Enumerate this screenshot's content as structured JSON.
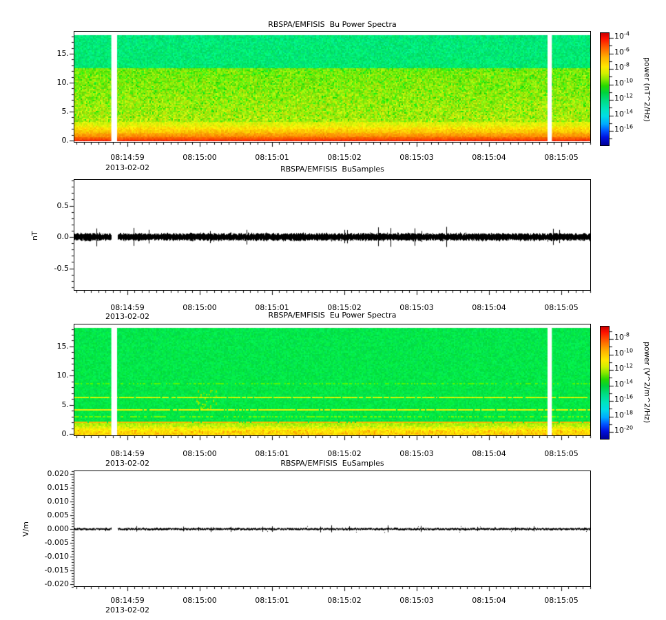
{
  "time_axis": {
    "start": "08:14:58.26",
    "end": "08:15:05.41",
    "date_label": "2013-02-02",
    "tick_labels": [
      "08:14:59",
      "08:15:00",
      "08:15:01",
      "08:15:02",
      "08:15:03",
      "08:15:04",
      "08:15:05"
    ],
    "minor_tick_step_s": 0.1
  },
  "chart_data": [
    {
      "type": "heatmap",
      "title": "RBSPA/EMFISIS  Bu Power Spectra",
      "x_ticks": [
        "08:14:59",
        "08:15:00",
        "08:15:01",
        "08:15:02",
        "08:15:03",
        "08:15:04",
        "08:15:05"
      ],
      "x_date": "2013-02-02",
      "ylim": [
        -0.4,
        18.9
      ],
      "yticks": [
        15,
        10,
        5,
        0
      ],
      "ytick_labels": [
        "15.",
        "10.",
        "5.",
        "0."
      ],
      "y_minor_step": 1,
      "data_f_range": [
        -0.12,
        18.1
      ],
      "colorbar": {
        "label": "power (nT^2/Hz)",
        "scale": "log",
        "tick_exponents": [
          -4,
          -6,
          -8,
          -10,
          -12,
          -14,
          -16
        ]
      },
      "data_gaps": [
        {
          "start": "08:14:58.78",
          "end": "08:14:58.86"
        },
        {
          "start": "08:15:04.81",
          "end": "08:15:04.87"
        }
      ],
      "bands": [
        {
          "f_range": [
            12.4,
            18.1
          ],
          "hue": [
            151,
            149
          ],
          "sat": 98,
          "light": 46,
          "hue_jitter": 6,
          "light_jitter": 4,
          "approx_power": "1e-12"
        },
        {
          "f_range": [
            3.2,
            12.4
          ],
          "hue": [
            92,
            76
          ],
          "sat": 93,
          "light": 48,
          "hue_jitter": 15,
          "light_jitter": 5,
          "approx_power": "1e-10"
        },
        {
          "f_range": [
            2.2,
            3.2
          ],
          "hue": [
            68,
            58
          ],
          "sat": 95,
          "light": 49,
          "hue_jitter": 8,
          "light_jitter": 3,
          "approx_power": "3e-9"
        },
        {
          "f_range": [
            1.3,
            2.2
          ],
          "hue": [
            54,
            45
          ],
          "sat": 100,
          "light": 50,
          "hue_jitter": 6,
          "light_jitter": 3,
          "approx_power": "1e-8"
        },
        {
          "f_range": [
            0.55,
            1.3
          ],
          "hue": [
            42,
            30
          ],
          "sat": 100,
          "light": 50,
          "hue_jitter": 5,
          "light_jitter": 3,
          "approx_power": "1e-7"
        },
        {
          "f_range": [
            0.1,
            0.55
          ],
          "hue": [
            27,
            15
          ],
          "sat": 100,
          "light": 49,
          "hue_jitter": 4,
          "light_jitter": 3,
          "approx_power": "1e-6"
        },
        {
          "f_range": [
            -0.12,
            0.1
          ],
          "hue": [
            13,
            4
          ],
          "sat": 100,
          "light": 47,
          "hue_jitter": 3,
          "light_jitter": 3,
          "approx_power": "1e-5"
        }
      ]
    },
    {
      "type": "line",
      "title": "RBSPA/EMFISIS  BuSamples",
      "ylabel": "nT",
      "ylim": [
        -0.86,
        0.92
      ],
      "yticks": [
        0.5,
        0,
        -0.5
      ],
      "ytick_labels": [
        "0.5",
        "0.0",
        "-0.5"
      ],
      "y_minor_step": 0.1,
      "series": [
        {
          "name": "Bu",
          "mean": 0.0,
          "noise_amplitude": 0.05,
          "spike_amplitude": 0.12,
          "description": "broadband noise centered on 0.0 nT spanning full time range"
        }
      ],
      "data_gaps": [
        {
          "start": "08:14:58.78",
          "end": "08:14:58.86"
        }
      ]
    },
    {
      "type": "heatmap",
      "title": "RBSPA/EMFISIS  Eu Power Spectra",
      "x_ticks": [
        "08:14:59",
        "08:15:00",
        "08:15:01",
        "08:15:02",
        "08:15:03",
        "08:15:04",
        "08:15:05"
      ],
      "x_date": "2013-02-02",
      "ylim": [
        -0.4,
        18.9
      ],
      "yticks": [
        15,
        10,
        5,
        0
      ],
      "ytick_labels": [
        "15.",
        "10.",
        "5.",
        "0."
      ],
      "y_minor_step": 1,
      "data_f_range": [
        -0.12,
        18.1
      ],
      "colorbar": {
        "label": "power (V^2/m^2/Hz)",
        "scale": "log",
        "tick_exponents": [
          -8,
          -10,
          -12,
          -14,
          -16,
          -18,
          -20
        ]
      },
      "data_gaps": [
        {
          "start": "08:14:58.78",
          "end": "08:14:58.86"
        },
        {
          "start": "08:15:04.81",
          "end": "08:15:04.87"
        }
      ],
      "bands": [
        {
          "f_range": [
            2.0,
            18.1
          ],
          "hue": [
            139,
            137
          ],
          "sat": 97,
          "light": 46,
          "hue_jitter": 4,
          "light_jitter": 3,
          "approx_power": "1e-14"
        },
        {
          "f_range": [
            1.0,
            2.0
          ],
          "hue": [
            86,
            62
          ],
          "sat": 95,
          "light": 49,
          "hue_jitter": 12,
          "light_jitter": 4,
          "approx_power": "1e-13"
        },
        {
          "f_range": [
            -0.12,
            1.0
          ],
          "hue": [
            58,
            50
          ],
          "sat": 100,
          "light": 50,
          "hue_jitter": 6,
          "light_jitter": 3,
          "approx_power": "1e-12"
        }
      ],
      "spectral_lines": [
        {
          "f": 8.6,
          "width": 0.1,
          "hue": 100,
          "strength": 0.5
        },
        {
          "f": 6.2,
          "width": 0.12,
          "hue": 68,
          "strength": 0.9
        },
        {
          "f": 4.15,
          "width": 0.12,
          "hue": 60,
          "strength": 0.9
        },
        {
          "f": 2.95,
          "width": 0.1,
          "hue": 92,
          "strength": 0.5
        },
        {
          "f": 2.1,
          "width": 0.14,
          "hue": 45,
          "strength": 0.95
        }
      ]
    },
    {
      "type": "line",
      "title": "RBSPA/EMFISIS  EuSamples",
      "ylabel": "V/m",
      "ylim": [
        -0.02125,
        0.02125
      ],
      "yticks": [
        0.02,
        0.015,
        0.01,
        0.005,
        0,
        -0.005,
        -0.01,
        -0.015,
        -0.02
      ],
      "ytick_labels": [
        "0.020",
        "0.015",
        "0.010",
        "0.005",
        "0.000",
        "-0.005",
        "-0.010",
        "-0.015",
        "-0.020"
      ],
      "y_minor_step": 0.001,
      "series": [
        {
          "name": "Eu",
          "mean": 0.0,
          "noise_amplitude": 0.0003,
          "spike_amplitude": 0.001,
          "description": "thin noisy trace centered on 0.000 V/m spanning full time range"
        }
      ],
      "data_gaps": [
        {
          "start": "08:14:58.78",
          "end": "08:14:58.86"
        }
      ]
    }
  ]
}
